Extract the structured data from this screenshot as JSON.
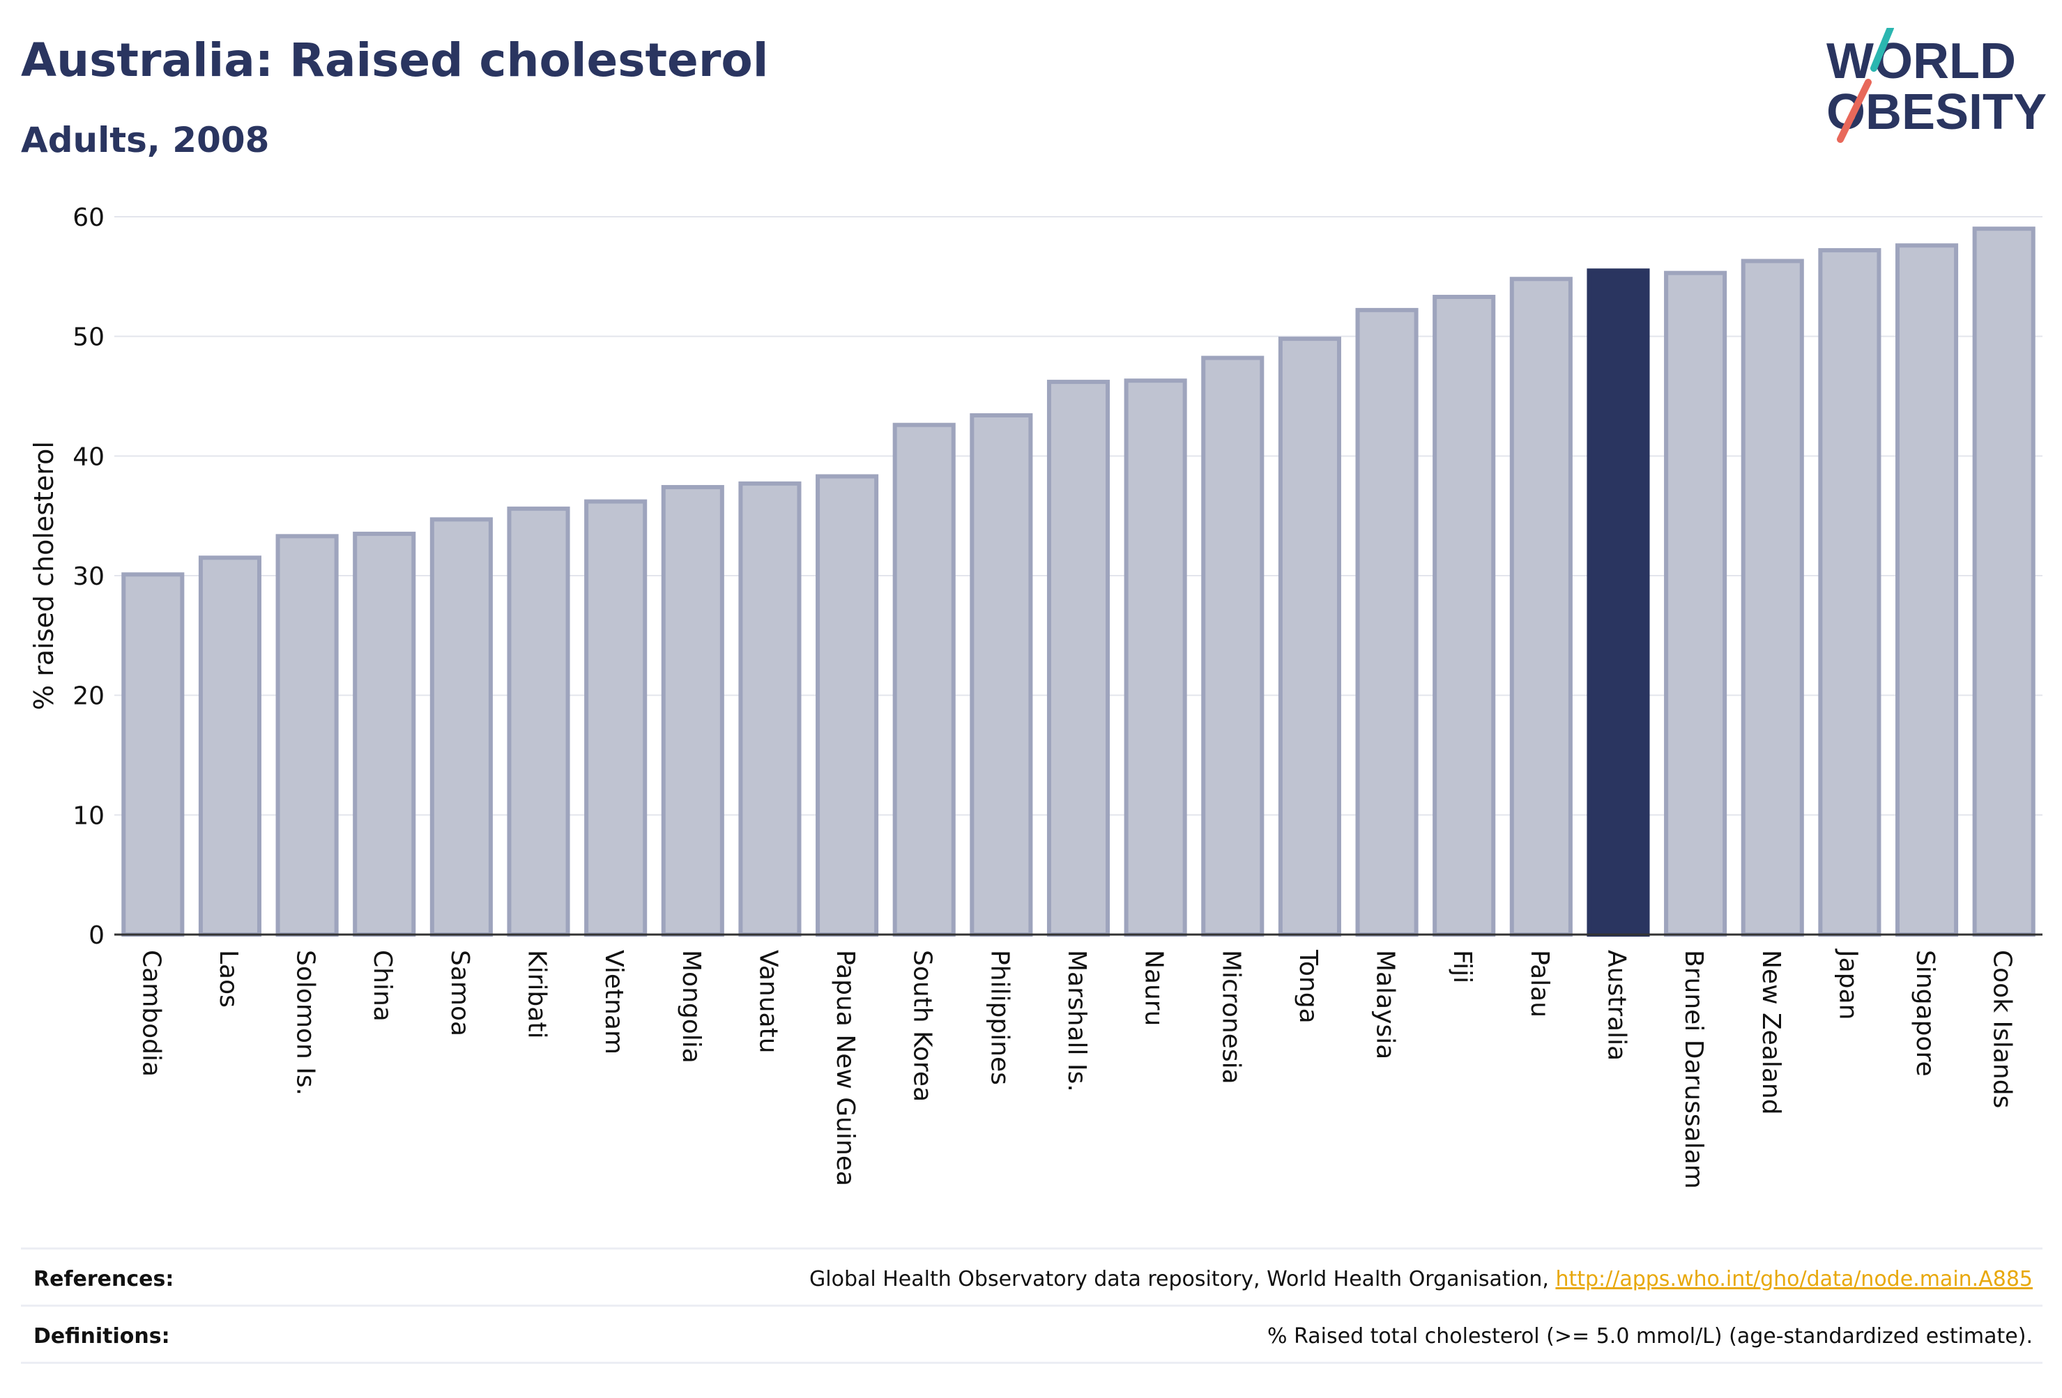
{
  "header": {
    "title": "Australia: Raised cholesterol",
    "subtitle": "Adults, 2008"
  },
  "logo": {
    "line1": "WORLD",
    "line2": "OBESITY",
    "colors": {
      "text": "#2a3560",
      "teal": "#2bb6b0",
      "coral": "#e8685a"
    }
  },
  "chart_data": {
    "type": "bar",
    "ylabel": "% raised cholesterol",
    "ylim": [
      0,
      60
    ],
    "yticks": [
      0,
      10,
      20,
      30,
      40,
      50,
      60
    ],
    "grid": true,
    "highlight": "Australia",
    "colors": {
      "bar": "#bfc3d1",
      "bar_edge": "#9ea4bd",
      "highlight": "#2a3560",
      "grid": "#e3e5ec",
      "axis": "#333333"
    },
    "categories": [
      "Cambodia",
      "Laos",
      "Solomon Is.",
      "China",
      "Samoa",
      "Kiribati",
      "Vietnam",
      "Mongolia",
      "Vanuatu",
      "Papua New Guinea",
      "South Korea",
      "Philippines",
      "Marshall Is.",
      "Nauru",
      "Micronesia",
      "Tonga",
      "Malaysia",
      "Fiji",
      "Palau",
      "Australia",
      "Brunei Darussalam",
      "New Zealand",
      "Japan",
      "Singapore",
      "Cook Islands"
    ],
    "values": [
      30.1,
      31.5,
      33.3,
      33.5,
      34.7,
      35.6,
      36.2,
      37.4,
      37.7,
      38.3,
      42.6,
      43.4,
      46.2,
      46.3,
      48.2,
      49.8,
      52.2,
      53.3,
      54.8,
      55.5,
      55.3,
      56.3,
      57.2,
      57.6,
      59.0
    ]
  },
  "footer": {
    "references_label": "References:",
    "references_text": "Global Health Observatory data repository, World Health Organisation, ",
    "references_link": "http://apps.who.int/gho/data/node.main.A885",
    "definitions_label": "Definitions:",
    "definitions_text": "% Raised total cholesterol (>= 5.0 mmol/L) (age-standardized estimate)."
  }
}
